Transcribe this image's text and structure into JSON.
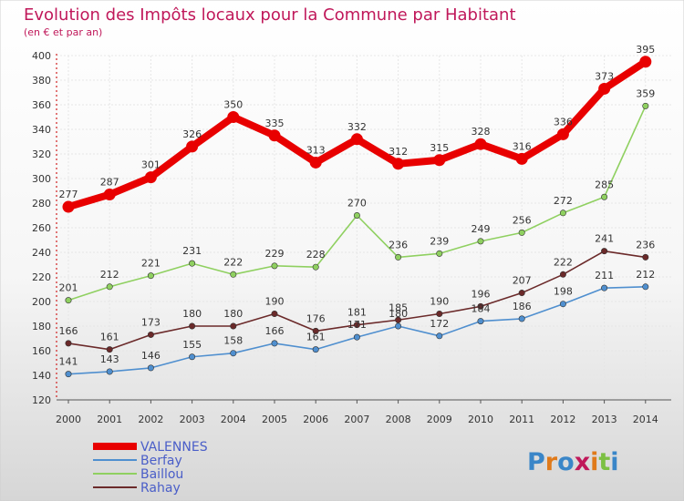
{
  "chart_data": {
    "type": "line",
    "title": "Evolution des Impôts locaux pour la Commune par Habitant",
    "subtitle": "(en € et par an)",
    "x": [
      "2000",
      "2001",
      "2002",
      "2003",
      "2004",
      "2005",
      "2006",
      "2007",
      "2008",
      "2009",
      "2010",
      "2011",
      "2012",
      "2013",
      "2014"
    ],
    "ylim": [
      120,
      400
    ],
    "yticks": [
      120,
      140,
      160,
      180,
      200,
      220,
      240,
      260,
      280,
      300,
      320,
      340,
      360,
      380,
      400
    ],
    "grid": true,
    "legend_position": "bottom-left",
    "series": [
      {
        "name": "VALENNES",
        "color": "#e80000",
        "values": [
          277,
          287,
          301,
          326,
          350,
          335,
          313,
          332,
          312,
          315,
          328,
          316,
          336,
          373,
          395
        ]
      },
      {
        "name": "Berfay",
        "color": "#4f8fcf",
        "values": [
          141,
          143,
          146,
          155,
          158,
          166,
          161,
          171,
          180,
          172,
          184,
          186,
          198,
          211,
          212
        ]
      },
      {
        "name": "Baillou",
        "color": "#8fd060",
        "values": [
          201,
          212,
          221,
          231,
          222,
          229,
          228,
          270,
          236,
          239,
          249,
          256,
          272,
          285,
          359
        ]
      },
      {
        "name": "Rahay",
        "color": "#6b2a2a",
        "values": [
          166,
          161,
          173,
          180,
          180,
          190,
          176,
          181,
          185,
          190,
          196,
          207,
          222,
          241,
          236
        ]
      }
    ]
  },
  "brand": {
    "logo_text": "Proxiti"
  },
  "colors": {
    "title": "#c0185a",
    "background_top": "#ffffff",
    "background_bottom": "#dcdcdc"
  }
}
